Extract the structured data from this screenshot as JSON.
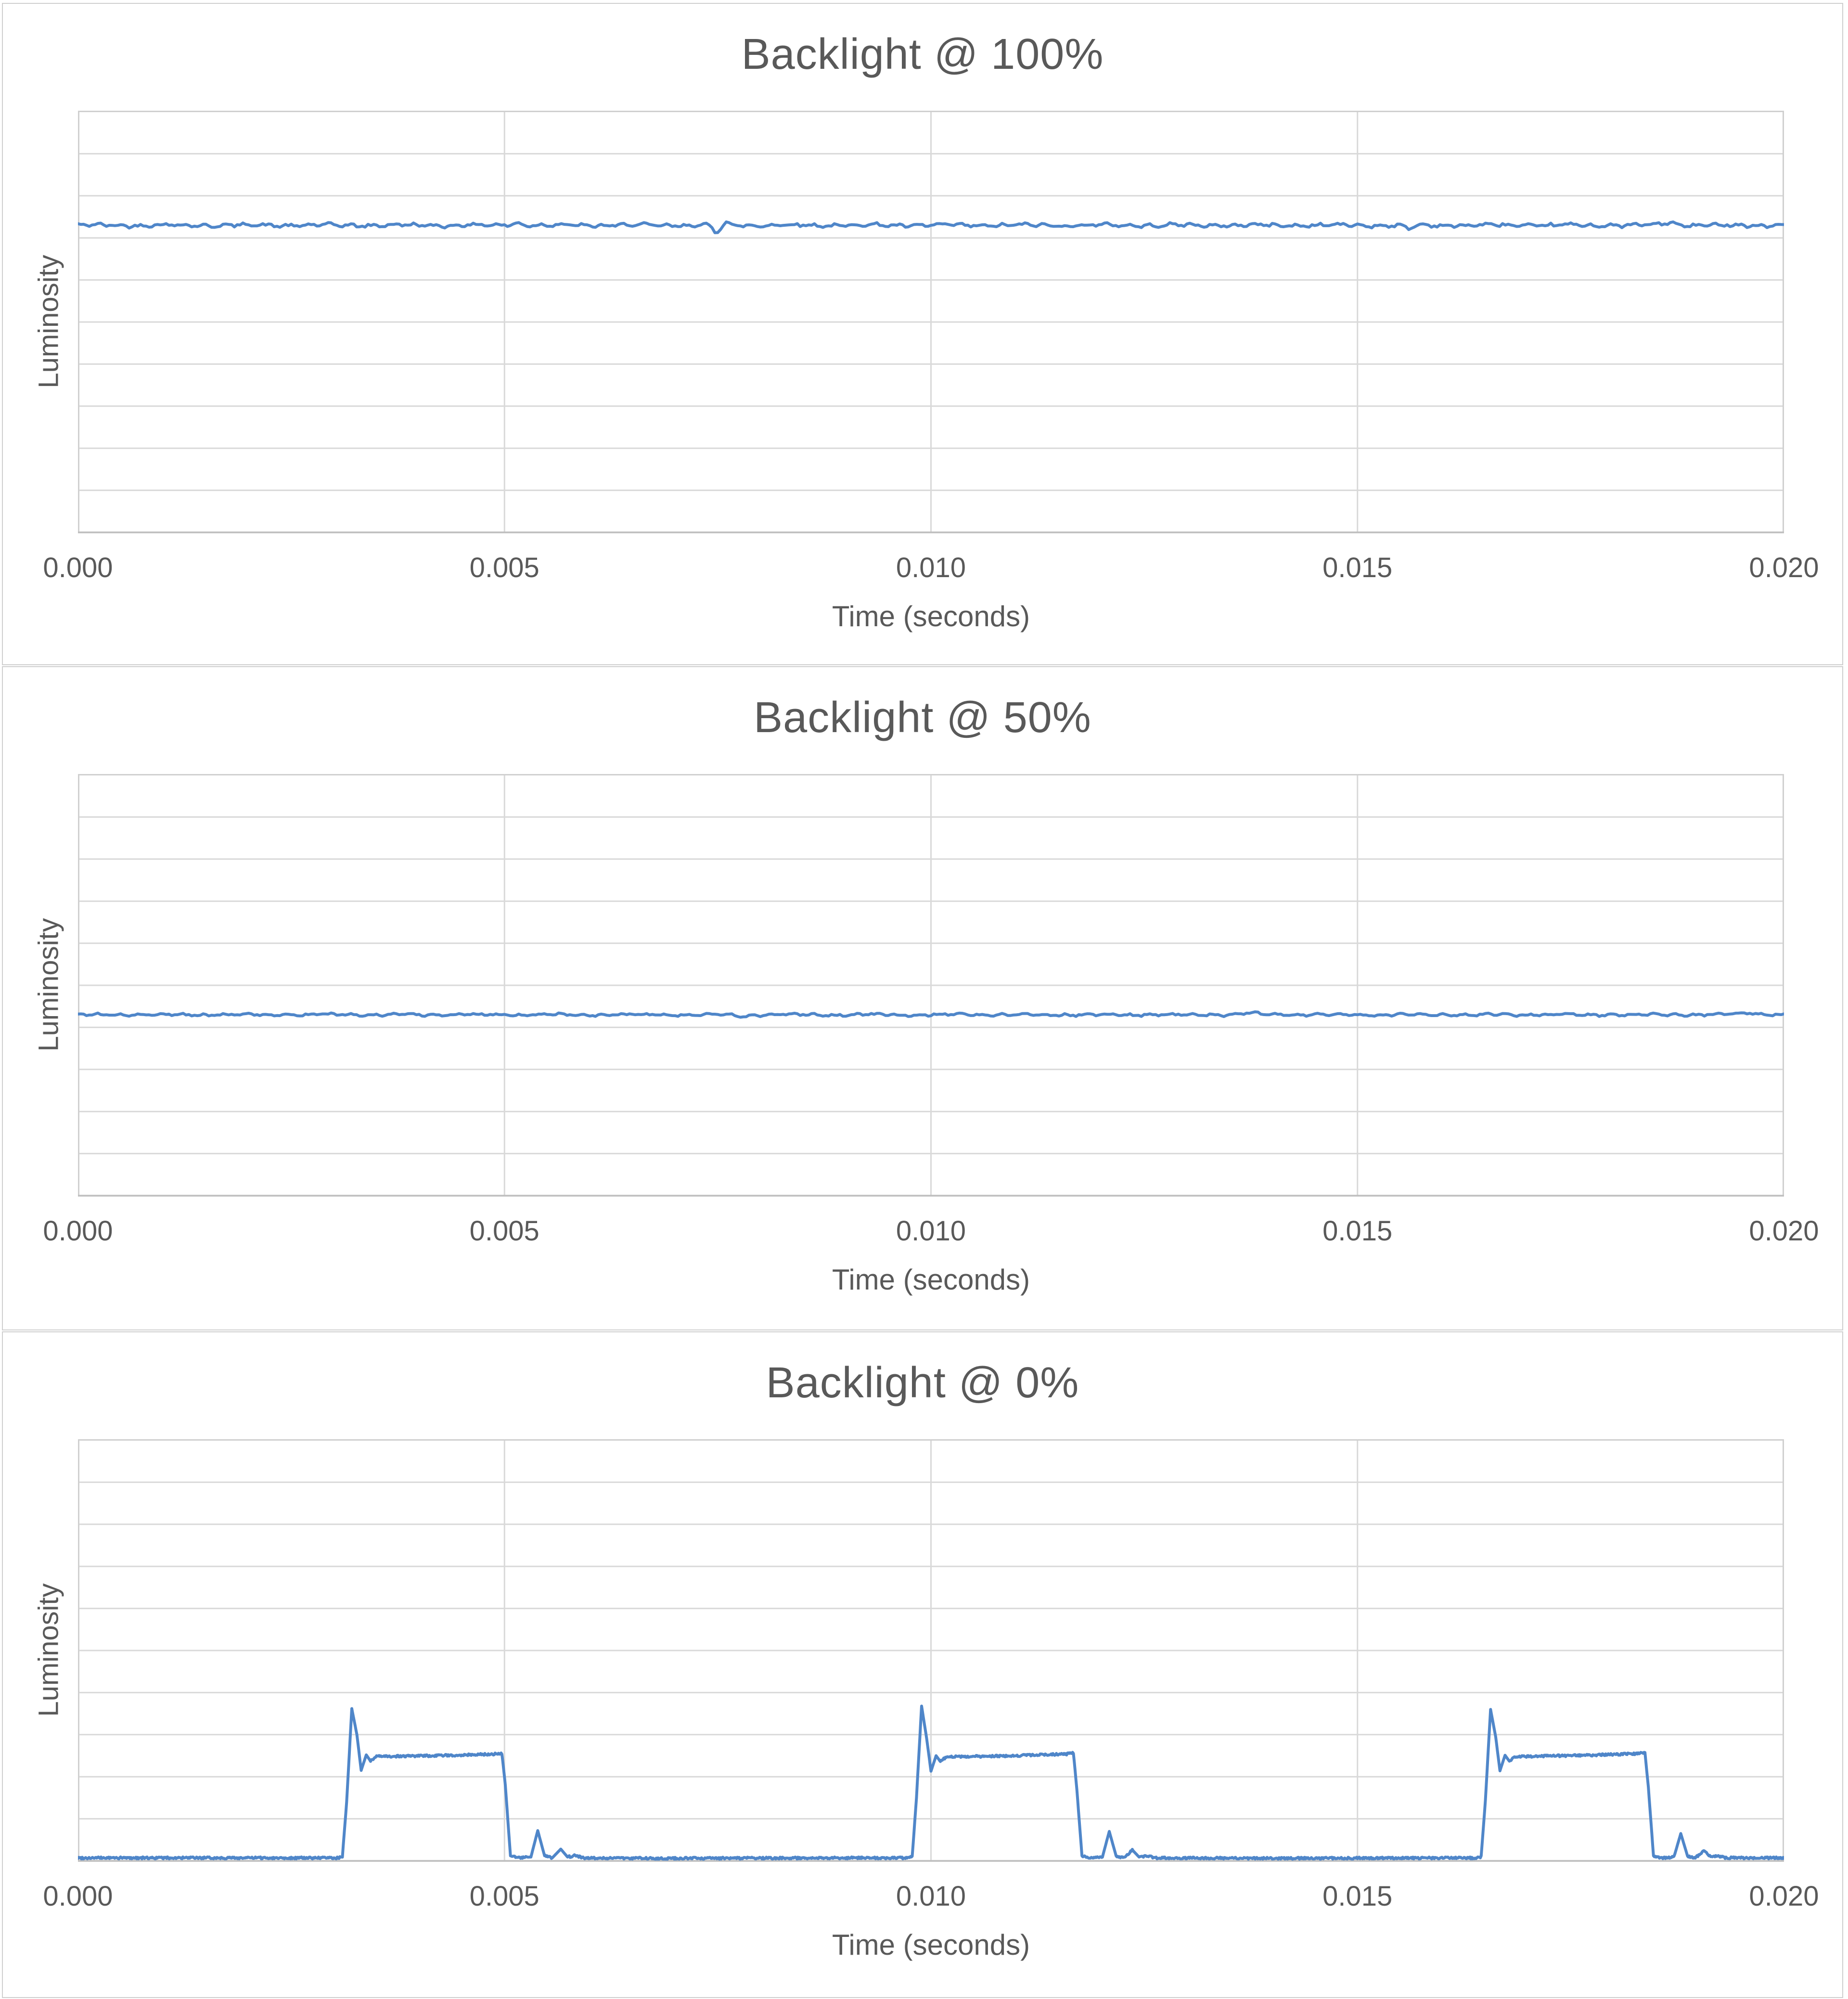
{
  "page": {
    "background": "#ffffff"
  },
  "colors": {
    "line": "#4f86c9",
    "gridline": "#d9d9d9",
    "plot_border": "#d0d0d0",
    "axis_line": "#bfbfbf",
    "text": "#595959",
    "panel_border": "#cfcfcf"
  },
  "chart_data": [
    {
      "type": "line",
      "title": "Backlight @ 100%",
      "xlabel": "Time (seconds)",
      "ylabel": "Luminosity",
      "x_range": [
        0,
        0.02
      ],
      "tick_labels": [
        "0.000",
        "0.005",
        "0.010",
        "0.015",
        "0.020"
      ],
      "tick_values": [
        0,
        0.005,
        0.01,
        0.015,
        0.02
      ],
      "x_gridlines": [
        0.005,
        0.01,
        0.015
      ],
      "y_gridline_count": 9,
      "y_axis_labels_visible": false,
      "grid": true,
      "legend": "none",
      "series": {
        "kind": "flat",
        "description": "steady luminosity, flicker-free",
        "level_fraction": 0.73,
        "noise_amplitude": 0.005,
        "features": [
          {
            "t": 0.00748,
            "dv": -0.017,
            "w": 6e-05
          },
          {
            "t": 0.0076,
            "dv": 0.007,
            "w": 4e-05
          },
          {
            "t": 0.00515,
            "dv": 0.005,
            "w": 0.0001
          },
          {
            "t": 0.0156,
            "dv": -0.008,
            "w": 8e-05
          },
          {
            "t": 0.01865,
            "dv": 0.006,
            "w": 0.00012
          }
        ]
      }
    },
    {
      "type": "line",
      "title": "Backlight @ 50%",
      "xlabel": "Time (seconds)",
      "ylabel": "Luminosity",
      "x_range": [
        0,
        0.02
      ],
      "tick_labels": [
        "0.000",
        "0.005",
        "0.010",
        "0.015",
        "0.020"
      ],
      "tick_values": [
        0,
        0.005,
        0.01,
        0.015,
        0.02
      ],
      "x_gridlines": [
        0.005,
        0.01,
        0.015
      ],
      "y_gridline_count": 9,
      "y_axis_labels_visible": false,
      "grid": true,
      "legend": "none",
      "series": {
        "kind": "flat",
        "description": "steady luminosity, flicker-free",
        "level_fraction": 0.43,
        "noise_amplitude": 0.0035,
        "features": [
          {
            "t": 0.0078,
            "dv": -0.005,
            "w": 0.0001
          },
          {
            "t": 0.01375,
            "dv": 0.004,
            "w": 0.00015
          },
          {
            "t": 0.0196,
            "dv": 0.004,
            "w": 0.0002
          }
        ]
      }
    },
    {
      "type": "line",
      "title": "Backlight @ 0%",
      "xlabel": "Time (seconds)",
      "ylabel": "Luminosity",
      "x_range": [
        0,
        0.02
      ],
      "tick_labels": [
        "0.000",
        "0.005",
        "0.010",
        "0.015",
        "0.020"
      ],
      "tick_values": [
        0,
        0.005,
        0.01,
        0.015,
        0.02
      ],
      "x_gridlines": [
        0.005,
        0.01,
        0.015
      ],
      "y_gridline_count": 9,
      "y_axis_labels_visible": false,
      "grid": true,
      "legend": "none",
      "series": {
        "kind": "pulse_train",
        "description": "PWM pulses with overshoot spike, plateau and fall bumps",
        "baseline_fraction": 0.007,
        "plateau_fraction": 0.25,
        "overshoot_peak_fraction": 0.366,
        "pulse_rise_times_s": [
          0.0031,
          0.00978,
          0.01645
        ],
        "pulse_fall_times_s": [
          0.00497,
          0.01167,
          0.01837
        ],
        "noise_amplitude": 0.003,
        "keypoints": [
          [
            0.0,
            0.007
          ],
          [
            0.00305,
            0.007
          ],
          [
            0.0031,
            0.01
          ],
          [
            0.00315,
            0.14
          ],
          [
            0.00321,
            0.362
          ],
          [
            0.00327,
            0.3
          ],
          [
            0.00332,
            0.215
          ],
          [
            0.00338,
            0.252
          ],
          [
            0.00343,
            0.237
          ],
          [
            0.0035,
            0.248
          ],
          [
            0.0042,
            0.25
          ],
          [
            0.0049,
            0.254
          ],
          [
            0.00497,
            0.256
          ],
          [
            0.00501,
            0.18
          ],
          [
            0.00507,
            0.012
          ],
          [
            0.00517,
            0.007
          ],
          [
            0.00531,
            0.009
          ],
          [
            0.00539,
            0.072
          ],
          [
            0.00547,
            0.012
          ],
          [
            0.00556,
            0.007
          ],
          [
            0.00566,
            0.028
          ],
          [
            0.00574,
            0.009
          ],
          [
            0.00583,
            0.013
          ],
          [
            0.00592,
            0.007
          ],
          [
            0.007,
            0.006
          ],
          [
            0.009,
            0.007
          ],
          [
            0.00973,
            0.007
          ],
          [
            0.00978,
            0.01
          ],
          [
            0.00983,
            0.15
          ],
          [
            0.00989,
            0.368
          ],
          [
            0.00995,
            0.29
          ],
          [
            0.01,
            0.213
          ],
          [
            0.01006,
            0.25
          ],
          [
            0.01011,
            0.236
          ],
          [
            0.01018,
            0.247
          ],
          [
            0.011,
            0.25
          ],
          [
            0.0116,
            0.254
          ],
          [
            0.01167,
            0.257
          ],
          [
            0.01171,
            0.17
          ],
          [
            0.01177,
            0.012
          ],
          [
            0.01187,
            0.007
          ],
          [
            0.01201,
            0.009
          ],
          [
            0.01209,
            0.07
          ],
          [
            0.01217,
            0.012
          ],
          [
            0.01226,
            0.007
          ],
          [
            0.01236,
            0.026
          ],
          [
            0.01244,
            0.009
          ],
          [
            0.01253,
            0.012
          ],
          [
            0.01262,
            0.007
          ],
          [
            0.014,
            0.006
          ],
          [
            0.016,
            0.007
          ],
          [
            0.0164,
            0.007
          ],
          [
            0.01645,
            0.01
          ],
          [
            0.0165,
            0.145
          ],
          [
            0.01656,
            0.36
          ],
          [
            0.01662,
            0.295
          ],
          [
            0.01667,
            0.214
          ],
          [
            0.01673,
            0.251
          ],
          [
            0.01678,
            0.237
          ],
          [
            0.01685,
            0.248
          ],
          [
            0.0177,
            0.251
          ],
          [
            0.0183,
            0.255
          ],
          [
            0.01837,
            0.257
          ],
          [
            0.01841,
            0.175
          ],
          [
            0.01847,
            0.012
          ],
          [
            0.01857,
            0.007
          ],
          [
            0.01871,
            0.009
          ],
          [
            0.01879,
            0.065
          ],
          [
            0.01887,
            0.011
          ],
          [
            0.01896,
            0.007
          ],
          [
            0.01906,
            0.024
          ],
          [
            0.01914,
            0.009
          ],
          [
            0.01923,
            0.011
          ],
          [
            0.01932,
            0.007
          ],
          [
            0.02,
            0.007
          ]
        ]
      }
    }
  ]
}
